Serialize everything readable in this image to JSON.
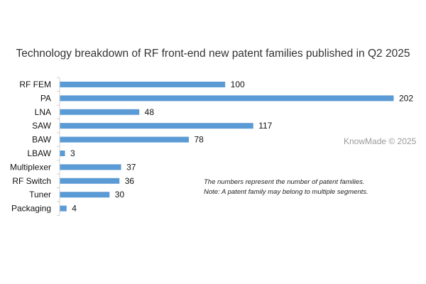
{
  "chart_data": {
    "type": "bar",
    "orientation": "horizontal",
    "title": "Technology breakdown of RF front-end new patent families published in Q2 2025",
    "categories": [
      "RF FEM",
      "PA",
      "LNA",
      "SAW",
      "BAW",
      "LBAW",
      "Multiplexer",
      "RF Switch",
      "Tuner",
      "Packaging"
    ],
    "values": [
      100,
      202,
      48,
      117,
      78,
      3,
      37,
      36,
      30,
      4
    ],
    "bar_color": "#5b9bd5",
    "grid": false,
    "data_labels": true
  },
  "watermark": "KnowMade © 2025",
  "notes": [
    "The numbers represent the number of patent families.",
    "Note: A patent family may belong to multiple segments."
  ]
}
